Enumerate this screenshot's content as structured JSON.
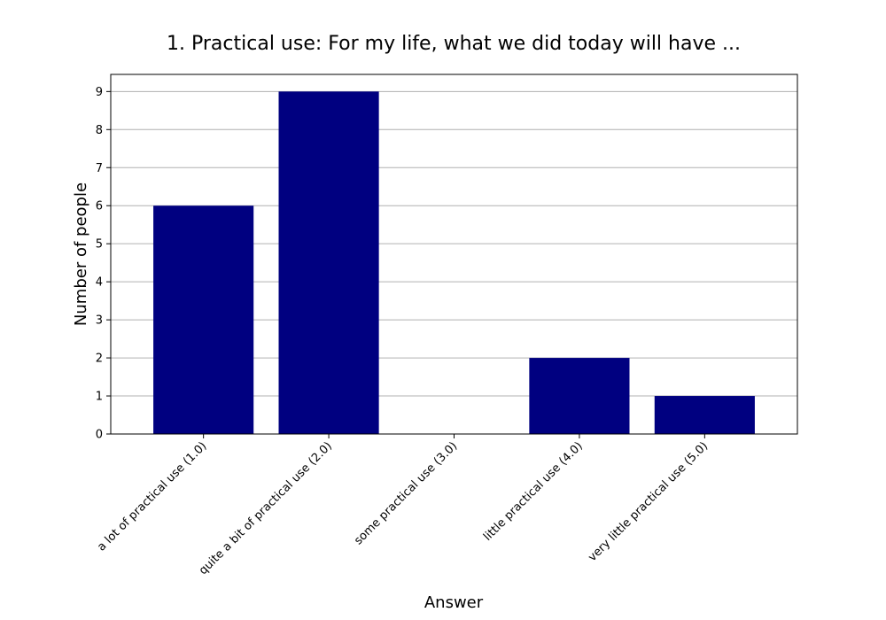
{
  "chart_data": {
    "type": "bar",
    "title": "1. Practical use: For my life, what we did today will have ...",
    "xlabel": "Answer",
    "ylabel": "Number of people",
    "categories": [
      "a lot of practical use (1.0)",
      "quite a bit of practical use (2.0)",
      "some practical use (3.0)",
      "little practical use (4.0)",
      "very little practical use (5.0)"
    ],
    "values": [
      6,
      9,
      0,
      2,
      1
    ],
    "ylim": [
      0,
      9.45
    ],
    "yticks": [
      0,
      1,
      2,
      3,
      4,
      5,
      6,
      7,
      8,
      9
    ],
    "grid": "horizontal",
    "bar_color": "#000080",
    "grid_color": "#b0b0b0"
  }
}
